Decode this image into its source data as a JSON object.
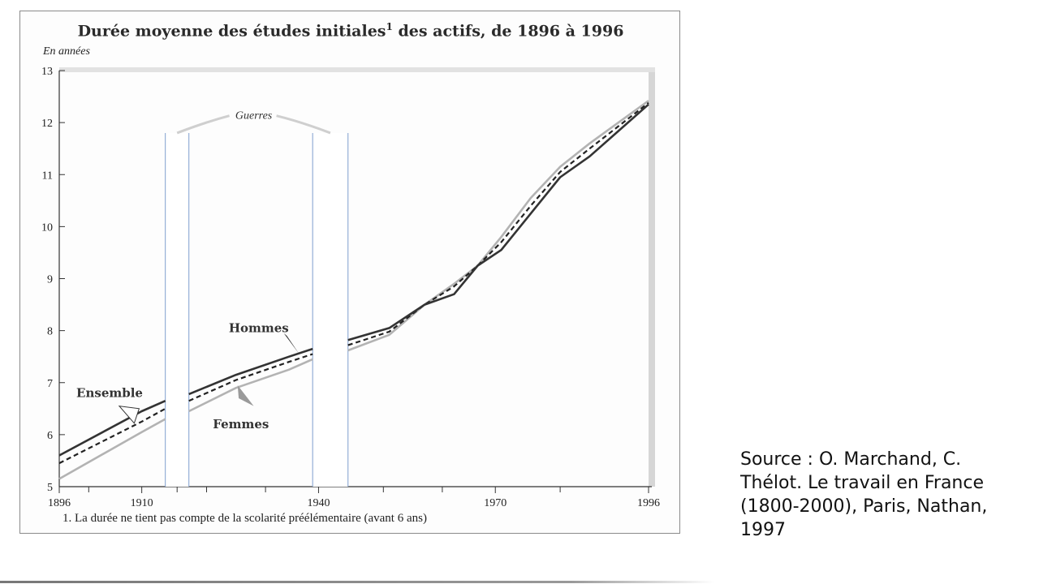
{
  "chart_data": {
    "type": "line",
    "title": "Durée moyenne des études initiales",
    "title_sup": "1",
    "title_rest": " des actifs, de 1896 à 1996",
    "ylabel": "En années",
    "ylim": [
      5,
      13
    ],
    "xlim": [
      1896,
      1996
    ],
    "y_ticks": [
      "5",
      "6",
      "7",
      "8",
      "9",
      "10",
      "11",
      "12",
      "13"
    ],
    "x_ticks_labeled": [
      "1896",
      "1910",
      "1940",
      "1970",
      "1996"
    ],
    "x_ticks_minor": [
      1901,
      1916,
      1921,
      1931,
      1951,
      1961,
      1981
    ],
    "war_label": "Guerres",
    "war_periods": [
      [
        1914,
        1918
      ],
      [
        1939,
        1945
      ]
    ],
    "footnote": "1. La durée ne tient pas compte de la scolarité préélémentaire (avant 6 ans)",
    "grid": false,
    "series": [
      {
        "name": "Hommes",
        "color": "#333333",
        "style": "solid",
        "segments": [
          [
            [
              1896,
              5.6
            ],
            [
              1910,
              6.45
            ],
            [
              1914,
              6.65
            ]
          ],
          [
            [
              1918,
              6.78
            ],
            [
              1926,
              7.15
            ],
            [
              1935,
              7.5
            ],
            [
              1939,
              7.65
            ]
          ],
          [
            [
              1945,
              7.82
            ],
            [
              1952,
              8.05
            ],
            [
              1958,
              8.5
            ],
            [
              1963,
              8.7
            ],
            [
              1967,
              9.25
            ],
            [
              1971,
              9.55
            ],
            [
              1976,
              10.25
            ],
            [
              1981,
              10.95
            ],
            [
              1986,
              11.35
            ],
            [
              1996,
              12.35
            ]
          ]
        ]
      },
      {
        "name": "Ensemble",
        "color": "#222222",
        "style": "dashed",
        "segments": [
          [
            [
              1896,
              5.45
            ],
            [
              1910,
              6.25
            ],
            [
              1914,
              6.5
            ]
          ],
          [
            [
              1918,
              6.65
            ],
            [
              1926,
              7.05
            ],
            [
              1935,
              7.4
            ],
            [
              1939,
              7.55
            ]
          ],
          [
            [
              1945,
              7.72
            ],
            [
              1952,
              7.98
            ],
            [
              1958,
              8.5
            ],
            [
              1963,
              8.85
            ],
            [
              1967,
              9.25
            ],
            [
              1971,
              9.7
            ],
            [
              1976,
              10.4
            ],
            [
              1981,
              11.05
            ],
            [
              1986,
              11.5
            ],
            [
              1996,
              12.38
            ]
          ]
        ]
      },
      {
        "name": "Femmes",
        "color": "#b3b3b3",
        "style": "solid",
        "segments": [
          [
            [
              1896,
              5.15
            ],
            [
              1910,
              6.05
            ],
            [
              1914,
              6.3
            ]
          ],
          [
            [
              1918,
              6.45
            ],
            [
              1926,
              6.9
            ],
            [
              1935,
              7.25
            ],
            [
              1939,
              7.45
            ]
          ],
          [
            [
              1945,
              7.62
            ],
            [
              1952,
              7.92
            ],
            [
              1958,
              8.5
            ],
            [
              1963,
              8.9
            ],
            [
              1967,
              9.25
            ],
            [
              1971,
              9.8
            ],
            [
              1976,
              10.55
            ],
            [
              1981,
              11.15
            ],
            [
              1986,
              11.6
            ],
            [
              1996,
              12.42
            ]
          ]
        ]
      }
    ]
  },
  "source_text": "Source : O. Marchand, C. Thélot. Le travail en France (1800-2000), Paris, Nathan, 1997"
}
